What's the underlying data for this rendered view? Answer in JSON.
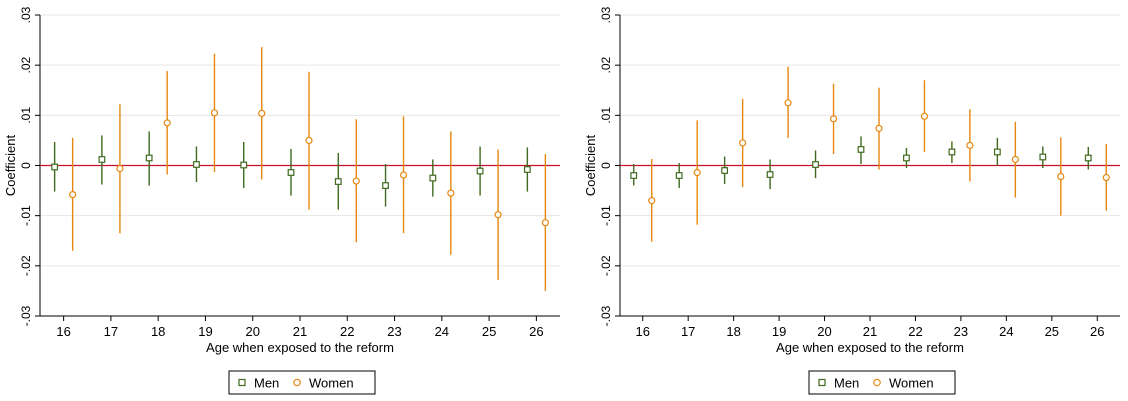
{
  "colors": {
    "men": "#3f6a1f",
    "women": "#e8870f",
    "zero_line": "#c8102e",
    "grid": "#e6e6e6",
    "axis": "#000000"
  },
  "legend": {
    "men_label": "Men",
    "women_label": "Women",
    "men_marker": "hollow-square",
    "women_marker": "hollow-circle"
  },
  "chart_data": [
    {
      "type": "scatter",
      "title": "",
      "xlabel": "Age when exposed to the reform",
      "ylabel": "Coefficient",
      "categories": [
        "16",
        "17",
        "18",
        "19",
        "20",
        "21",
        "22",
        "23",
        "24",
        "25",
        "26"
      ],
      "ylim": [
        -0.03,
        0.03
      ],
      "yticks": [
        "-.03",
        "-.02",
        "-.01",
        "0",
        ".01",
        ".02",
        ".03"
      ],
      "grid": true,
      "legend_position": "bottom",
      "reference_line": 0,
      "series": [
        {
          "name": "Men",
          "estimate": [
            -0.0003,
            0.0012,
            0.0015,
            0.0002,
            0.0001,
            -0.0014,
            -0.0032,
            -0.004,
            -0.0025,
            -0.0011,
            -0.0008
          ],
          "ci_low": [
            -0.0052,
            -0.0038,
            -0.004,
            -0.0033,
            -0.0045,
            -0.006,
            -0.0088,
            -0.0082,
            -0.0062,
            -0.006,
            -0.0052
          ],
          "ci_high": [
            0.0047,
            0.006,
            0.0068,
            0.0038,
            0.0047,
            0.0033,
            0.0025,
            0.0003,
            0.0012,
            0.0038,
            0.0036
          ]
        },
        {
          "name": "Women",
          "estimate": [
            -0.0058,
            -0.0006,
            0.0085,
            0.0105,
            0.0104,
            0.005,
            -0.0031,
            -0.0019,
            -0.0055,
            -0.0098,
            -0.0114
          ],
          "ci_low": [
            -0.017,
            -0.0135,
            -0.0018,
            -0.0013,
            -0.0028,
            -0.0088,
            -0.0153,
            -0.0135,
            -0.0178,
            -0.0228,
            -0.025
          ],
          "ci_high": [
            0.0055,
            0.0122,
            0.0188,
            0.0223,
            0.0236,
            0.0187,
            0.0092,
            0.0098,
            0.0068,
            0.0032,
            0.0023
          ]
        }
      ]
    },
    {
      "type": "scatter",
      "title": "",
      "xlabel": "Age when exposed to the reform",
      "ylabel": "Coefficient",
      "categories": [
        "16",
        "17",
        "18",
        "19",
        "20",
        "21",
        "22",
        "23",
        "24",
        "25",
        "26"
      ],
      "ylim": [
        -0.03,
        0.03
      ],
      "yticks": [
        "-.03",
        "-.02",
        "-.01",
        "0",
        ".01",
        ".02",
        ".03"
      ],
      "grid": true,
      "legend_position": "bottom",
      "reference_line": 0,
      "series": [
        {
          "name": "Men",
          "estimate": [
            -0.002,
            -0.002,
            -0.001,
            -0.0018,
            0.0002,
            0.0032,
            0.0015,
            0.0027,
            0.0027,
            0.0017,
            0.0015
          ],
          "ci_low": [
            -0.004,
            -0.0045,
            -0.0037,
            -0.0047,
            -0.0025,
            0.0003,
            -0.0005,
            0.0005,
            0.0,
            -0.0005,
            -0.0008
          ],
          "ci_high": [
            0.0003,
            0.0005,
            0.0018,
            0.0012,
            0.003,
            0.0058,
            0.0035,
            0.0048,
            0.0055,
            0.0038,
            0.0037
          ]
        },
        {
          "name": "Women",
          "estimate": [
            -0.007,
            -0.0014,
            0.0045,
            0.0125,
            0.0093,
            0.0074,
            0.0098,
            0.004,
            0.0012,
            -0.0022,
            -0.0024
          ],
          "ci_low": [
            -0.0152,
            -0.0118,
            -0.0043,
            0.0055,
            0.0023,
            -0.0008,
            0.0027,
            -0.0032,
            -0.0064,
            -0.01,
            -0.009
          ],
          "ci_high": [
            0.0013,
            0.009,
            0.0133,
            0.0197,
            0.0163,
            0.0155,
            0.017,
            0.0112,
            0.0087,
            0.0056,
            0.0043
          ]
        }
      ]
    }
  ]
}
